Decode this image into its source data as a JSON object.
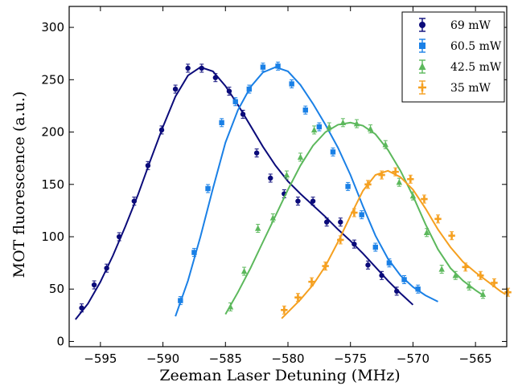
{
  "chart_data": {
    "type": "scatter",
    "title": "",
    "xlabel": "Zeeman Laser Detuning (MHz)",
    "ylabel": "MOT fluorescence (a.u.)",
    "xlim": [
      -597.5,
      -562.5
    ],
    "ylim": [
      -5,
      320
    ],
    "x_ticks": [
      -595,
      -590,
      -585,
      -580,
      -575,
      -570,
      -565
    ],
    "x_tick_labels": [
      "−595",
      "−590",
      "−585",
      "−580",
      "−575",
      "−570",
      "−565"
    ],
    "y_ticks": [
      0,
      50,
      100,
      150,
      200,
      250,
      300
    ],
    "y_tick_labels": [
      "0",
      "50",
      "100",
      "150",
      "200",
      "250",
      "300"
    ],
    "grid": false,
    "legend_position": "top-right",
    "series": [
      {
        "name": "69 mW",
        "color": "#0b0b7a",
        "marker": "circle",
        "points": [
          [
            -596.5,
            32
          ],
          [
            -595.5,
            54
          ],
          [
            -594.5,
            70
          ],
          [
            -593.5,
            100
          ],
          [
            -592.3,
            134
          ],
          [
            -591.2,
            168
          ],
          [
            -590.1,
            202
          ],
          [
            -589,
            241
          ],
          [
            -588,
            261
          ],
          [
            -586.9,
            261
          ],
          [
            -585.8,
            252
          ],
          [
            -584.7,
            239
          ],
          [
            -583.6,
            217
          ],
          [
            -582.5,
            180
          ],
          [
            -581.4,
            156
          ],
          [
            -580.3,
            141
          ],
          [
            -579.2,
            134
          ],
          [
            -578,
            134
          ],
          [
            -576.9,
            114
          ],
          [
            -575.8,
            114
          ],
          [
            -574.7,
            93
          ],
          [
            -573.6,
            73
          ],
          [
            -572.5,
            63
          ],
          [
            -571.3,
            48
          ]
        ],
        "curve": [
          [
            -597,
            21
          ],
          [
            -596,
            36
          ],
          [
            -595,
            57
          ],
          [
            -594,
            82
          ],
          [
            -593,
            110
          ],
          [
            -592,
            140
          ],
          [
            -591,
            173
          ],
          [
            -590,
            205
          ],
          [
            -589,
            234
          ],
          [
            -588,
            254
          ],
          [
            -587,
            262
          ],
          [
            -586,
            258
          ],
          [
            -585,
            244
          ],
          [
            -584,
            226
          ],
          [
            -583,
            206
          ],
          [
            -582,
            186
          ],
          [
            -581,
            168
          ],
          [
            -580,
            153
          ],
          [
            -579,
            141
          ],
          [
            -578,
            130
          ],
          [
            -577,
            119
          ],
          [
            -576,
            107
          ],
          [
            -575,
            96
          ],
          [
            -574,
            84
          ],
          [
            -573,
            71
          ],
          [
            -572,
            58
          ],
          [
            -571,
            46
          ],
          [
            -570,
            35
          ]
        ]
      },
      {
        "name": "60.5 mW",
        "color": "#1a80e6",
        "marker": "square",
        "points": [
          [
            -588.6,
            39
          ],
          [
            -587.5,
            85
          ],
          [
            -586.4,
            146
          ],
          [
            -585.3,
            209
          ],
          [
            -584.2,
            229
          ],
          [
            -583.1,
            241
          ],
          [
            -582,
            262
          ],
          [
            -580.8,
            263
          ],
          [
            -579.7,
            246
          ],
          [
            -578.6,
            221
          ],
          [
            -577.5,
            205
          ],
          [
            -576.4,
            181
          ],
          [
            -575.2,
            148
          ],
          [
            -574.1,
            121
          ],
          [
            -573,
            90
          ],
          [
            -571.9,
            75
          ],
          [
            -570.7,
            59
          ],
          [
            -569.6,
            50
          ]
        ],
        "curve": [
          [
            -589,
            24
          ],
          [
            -588,
            58
          ],
          [
            -587,
            100
          ],
          [
            -586,
            146
          ],
          [
            -585,
            190
          ],
          [
            -584,
            221
          ],
          [
            -583,
            243
          ],
          [
            -582,
            257
          ],
          [
            -581,
            262
          ],
          [
            -580,
            258
          ],
          [
            -579,
            245
          ],
          [
            -578,
            227
          ],
          [
            -577,
            207
          ],
          [
            -576,
            185
          ],
          [
            -575,
            159
          ],
          [
            -574,
            129
          ],
          [
            -573,
            101
          ],
          [
            -572,
            79
          ],
          [
            -571,
            63
          ],
          [
            -570,
            52
          ],
          [
            -569,
            44
          ],
          [
            -568,
            38
          ]
        ]
      },
      {
        "name": "42.5 mW",
        "color": "#5cb85c",
        "marker": "triangle",
        "points": [
          [
            -584.6,
            33
          ],
          [
            -583.5,
            67
          ],
          [
            -582.4,
            108
          ],
          [
            -581.2,
            118
          ],
          [
            -580.1,
            159
          ],
          [
            -579,
            176
          ],
          [
            -577.9,
            202
          ],
          [
            -576.7,
            205
          ],
          [
            -575.6,
            209
          ],
          [
            -574.5,
            208
          ],
          [
            -573.4,
            203
          ],
          [
            -572.2,
            188
          ],
          [
            -571.1,
            152
          ],
          [
            -570,
            139
          ],
          [
            -568.9,
            104
          ],
          [
            -567.7,
            69
          ],
          [
            -566.6,
            63
          ],
          [
            -565.5,
            53
          ],
          [
            -564.4,
            45
          ]
        ],
        "curve": [
          [
            -585,
            26
          ],
          [
            -584,
            47
          ],
          [
            -583,
            70
          ],
          [
            -582,
            95
          ],
          [
            -581,
            120
          ],
          [
            -580,
            145
          ],
          [
            -579,
            168
          ],
          [
            -578,
            187
          ],
          [
            -577,
            200
          ],
          [
            -576,
            207
          ],
          [
            -575,
            209
          ],
          [
            -574,
            206
          ],
          [
            -573,
            198
          ],
          [
            -572,
            183
          ],
          [
            -571,
            163
          ],
          [
            -570,
            139
          ],
          [
            -569,
            112
          ],
          [
            -568,
            88
          ],
          [
            -567,
            70
          ],
          [
            -566,
            58
          ],
          [
            -565,
            49
          ],
          [
            -564.5,
            45
          ]
        ]
      },
      {
        "name": "35 mW",
        "color": "#f5a020",
        "marker": "cross",
        "points": [
          [
            -580.3,
            30
          ],
          [
            -579.2,
            42
          ],
          [
            -578.1,
            57
          ],
          [
            -577,
            72
          ],
          [
            -575.8,
            97
          ],
          [
            -574.7,
            123
          ],
          [
            -573.6,
            150
          ],
          [
            -572.5,
            159
          ],
          [
            -571.4,
            162
          ],
          [
            -570.2,
            155
          ],
          [
            -569.1,
            136
          ],
          [
            -568,
            117
          ],
          [
            -566.9,
            101
          ],
          [
            -565.8,
            71
          ],
          [
            -564.6,
            63
          ],
          [
            -563.5,
            56
          ],
          [
            -562.4,
            47
          ]
        ],
        "curve": [
          [
            -580.5,
            22
          ],
          [
            -579,
            40
          ],
          [
            -578,
            54
          ],
          [
            -577,
            72
          ],
          [
            -576,
            95
          ],
          [
            -575,
            120
          ],
          [
            -574,
            144
          ],
          [
            -573,
            159
          ],
          [
            -572,
            163
          ],
          [
            -571,
            157
          ],
          [
            -570,
            145
          ],
          [
            -569,
            127
          ],
          [
            -568,
            107
          ],
          [
            -567,
            90
          ],
          [
            -566,
            76
          ],
          [
            -565,
            66
          ],
          [
            -564,
            57
          ],
          [
            -563,
            48
          ],
          [
            -562.6,
            45
          ]
        ]
      }
    ]
  }
}
